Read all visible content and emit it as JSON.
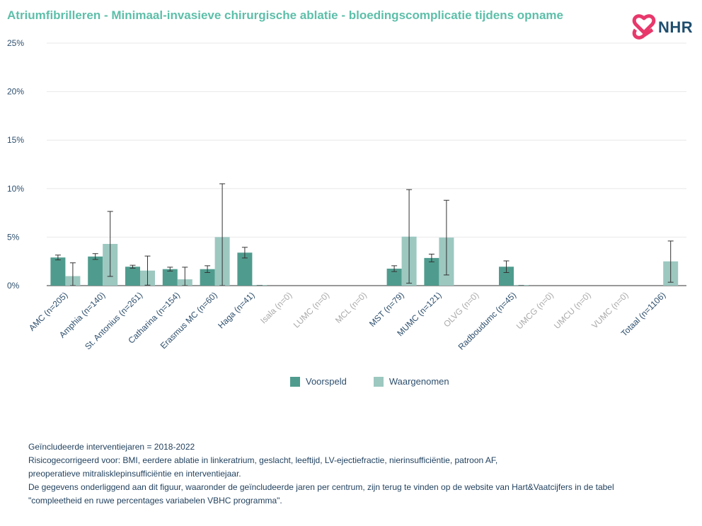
{
  "colors": {
    "title": "#5dbfa9",
    "voorspeld": "#4f9c8e",
    "waargenomen": "#9cc8c0",
    "grid": "#e8e8e8",
    "axis_text": "#2e4f6d",
    "axis_text_muted": "#aaaaaa",
    "logo_pink": "#e8386b",
    "logo_text": "#1f4e6e"
  },
  "logo": {
    "text": "NHR",
    "icon": "nhr-heart-cross-icon"
  },
  "chart_data": {
    "type": "bar",
    "title": "Atriumfibrilleren - Minimaal-invasieve chirurgische ablatie - bloedingscomplicatie tijdens opname",
    "ylim": [
      0,
      25
    ],
    "yticks": [
      "0%",
      "5%",
      "10%",
      "15%",
      "20%",
      "25%"
    ],
    "ytick_values": [
      0,
      5,
      10,
      15,
      20,
      25
    ],
    "categories": [
      "AMC (n=205)",
      "Amphia (n=140)",
      "St. Antonius (n=261)",
      "Catharina (n=154)",
      "Erasmus MC (n=60)",
      "Haga (n=41)",
      "Isala (n=0)",
      "LUMC (n=0)",
      "MCL (n=0)",
      "MST (n=79)",
      "MUMC (n=121)",
      "OLVG (n=0)",
      "Radboudumc (n=45)",
      "UMCG (n=0)",
      "UMCU (n=0)",
      "VUMC (n=0)",
      "Totaal (n=1106)"
    ],
    "muted_categories": [
      6,
      7,
      8,
      11,
      13,
      14,
      15
    ],
    "series": [
      {
        "name": "Voorspeld",
        "values": [
          2.9,
          3.0,
          1.95,
          1.7,
          1.7,
          3.4,
          null,
          null,
          null,
          1.75,
          2.85,
          null,
          1.95,
          null,
          null,
          null,
          null
        ],
        "ci_low": [
          2.65,
          2.7,
          1.8,
          1.5,
          1.35,
          2.85,
          null,
          null,
          null,
          1.45,
          2.45,
          null,
          1.35,
          null,
          null,
          null,
          null
        ],
        "ci_high": [
          3.15,
          3.3,
          2.1,
          1.9,
          2.05,
          3.95,
          null,
          null,
          null,
          2.05,
          3.25,
          null,
          2.55,
          null,
          null,
          null,
          null
        ]
      },
      {
        "name": "Waargenomen",
        "values": [
          0.98,
          4.3,
          1.55,
          0.65,
          5.0,
          0.0,
          null,
          null,
          null,
          5.05,
          4.95,
          null,
          0.0,
          null,
          null,
          null,
          2.5
        ],
        "ci_low": [
          0.0,
          0.95,
          0.05,
          0.0,
          0.0,
          0.0,
          null,
          null,
          null,
          0.25,
          1.1,
          null,
          0.0,
          null,
          null,
          null,
          0.35
        ],
        "ci_high": [
          2.35,
          7.65,
          3.05,
          1.9,
          10.5,
          0.0,
          null,
          null,
          null,
          9.9,
          8.8,
          null,
          0.0,
          null,
          null,
          null,
          4.6
        ]
      }
    ],
    "legend_position": "bottom-center",
    "grid": true
  },
  "notes": [
    "Geïncludeerde interventiejaren = 2018-2022",
    "Risicogecorrigeerd voor: BMI, eerdere ablatie in linkeratrium, geslacht, leeftijd, LV-ejectiefractie, nierinsufficiëntie, patroon AF,",
    "preoperatieve mitralisklepinsufficiëntie en interventiejaar.",
    "De gegevens onderliggend aan dit figuur, waaronder de geïncludeerde jaren per centrum, zijn terug te vinden op de website van Hart&Vaatcijfers in de tabel",
    "\"compleetheid en ruwe percentages variabelen VBHC programma\"."
  ]
}
